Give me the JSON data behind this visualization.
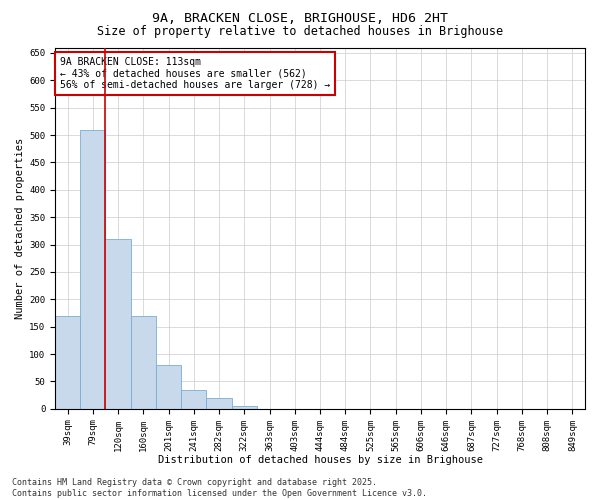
{
  "title_line1": "9A, BRACKEN CLOSE, BRIGHOUSE, HD6 2HT",
  "title_line2": "Size of property relative to detached houses in Brighouse",
  "xlabel": "Distribution of detached houses by size in Brighouse",
  "ylabel": "Number of detached properties",
  "categories": [
    "39sqm",
    "79sqm",
    "120sqm",
    "160sqm",
    "201sqm",
    "241sqm",
    "282sqm",
    "322sqm",
    "363sqm",
    "403sqm",
    "444sqm",
    "484sqm",
    "525sqm",
    "565sqm",
    "606sqm",
    "646sqm",
    "687sqm",
    "727sqm",
    "768sqm",
    "808sqm",
    "849sqm"
  ],
  "values": [
    170,
    510,
    310,
    170,
    80,
    35,
    20,
    5,
    0,
    0,
    0,
    0,
    0,
    0,
    0,
    0,
    0,
    0,
    0,
    0,
    0
  ],
  "bar_color": "#c9d9ec",
  "bar_edge_color": "#7aadd4",
  "red_line_index": 2,
  "red_line_color": "#cc0000",
  "annotation_text": "9A BRACKEN CLOSE: 113sqm\n← 43% of detached houses are smaller (562)\n56% of semi-detached houses are larger (728) →",
  "annotation_box_color": "#ffffff",
  "annotation_box_edge_color": "#cc0000",
  "ylim": [
    0,
    660
  ],
  "yticks": [
    0,
    50,
    100,
    150,
    200,
    250,
    300,
    350,
    400,
    450,
    500,
    550,
    600,
    650
  ],
  "background_color": "#ffffff",
  "grid_color": "#cccccc",
  "footer_line1": "Contains HM Land Registry data © Crown copyright and database right 2025.",
  "footer_line2": "Contains public sector information licensed under the Open Government Licence v3.0.",
  "title_fontsize": 9.5,
  "subtitle_fontsize": 8.5,
  "axis_label_fontsize": 7.5,
  "tick_fontsize": 6.5,
  "annotation_fontsize": 7,
  "footer_fontsize": 6
}
